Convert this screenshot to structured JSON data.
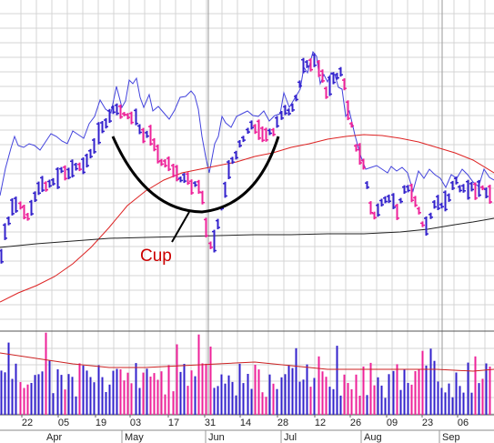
{
  "chart_data": {
    "type": "ohlc",
    "annotation": "Cup",
    "x_tick_labels": [
      "22",
      "05",
      "19",
      "03",
      "17",
      "31",
      "14",
      "28",
      "12",
      "26",
      "09",
      "23",
      "06"
    ],
    "month_labels": [
      "Apr",
      "May",
      "Jun",
      "Jul",
      "Aug",
      "Sep"
    ],
    "grid": true,
    "series": [
      {
        "key": "relative_strength",
        "color": "#4444dd"
      },
      {
        "key": "ma_fast",
        "color": "#dd2222"
      },
      {
        "key": "ma_slow",
        "color": "#222222"
      }
    ],
    "colors": {
      "up_bar": "#3322cc",
      "down_bar": "#ee2299",
      "volume_avg": "#cc2222",
      "grid": "#d4d4d4",
      "cup_line": "#000000",
      "annotation": "#cc0000"
    }
  }
}
